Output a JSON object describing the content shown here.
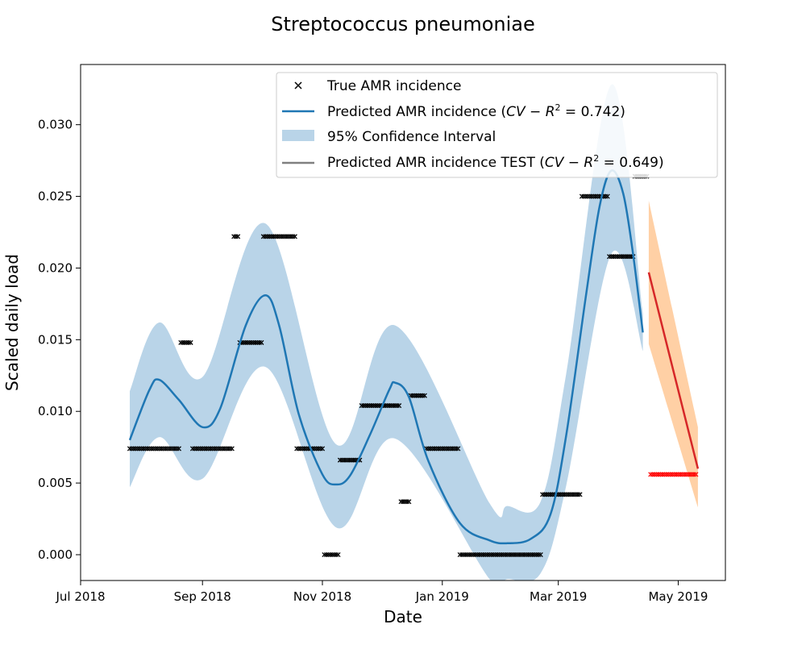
{
  "chart_data": {
    "type": "line",
    "title": "Streptococcus pneumoniae",
    "xlabel": "Date",
    "ylabel": "Scaled daily load",
    "x_axis_type": "date",
    "xlim": [
      "2018-07-01",
      "2019-05-25"
    ],
    "ylim": [
      -0.0018,
      0.0342
    ],
    "x_ticks": [
      {
        "date": "2018-07-01",
        "label": "Jul 2018"
      },
      {
        "date": "2018-09-01",
        "label": "Sep 2018"
      },
      {
        "date": "2018-11-01",
        "label": "Nov 2018"
      },
      {
        "date": "2019-01-01",
        "label": "Jan 2019"
      },
      {
        "date": "2019-03-01",
        "label": "Mar 2019"
      },
      {
        "date": "2019-05-01",
        "label": "May 2019"
      }
    ],
    "y_ticks": [
      0.0,
      0.005,
      0.01,
      0.015,
      0.02,
      0.025,
      0.03
    ],
    "y_tick_labels": [
      "0.000",
      "0.005",
      "0.010",
      "0.015",
      "0.020",
      "0.025",
      "0.030"
    ],
    "grid": false,
    "legend_position": "top-right",
    "legend": {
      "true_label": "True AMR incidence",
      "pred_label": "Predicted AMR incidence (",
      "pred_r2": "0.742",
      "ci_label": "95% Confidence Interval",
      "test_label": "Predicted AMR incidence TEST (",
      "test_r2": "0.649",
      "r2_prefix": "CV − R",
      "r2_sup": "2",
      "r2_eq": " = ",
      "close_paren": ")"
    },
    "colors": {
      "prediction": "#1f77b4",
      "ci": "#b9d4e8",
      "test_prediction": "#d62728",
      "test_ci": "#ffd0a5",
      "true_marker": "#000000",
      "test_marker": "#ff0000",
      "legend_test_line": "#808080"
    },
    "true_incidence": [
      {
        "start": "2018-07-26",
        "end": "2018-08-20",
        "value": 0.0074
      },
      {
        "start": "2018-08-21",
        "end": "2018-08-26",
        "value": 0.0148
      },
      {
        "start": "2018-08-27",
        "end": "2018-09-16",
        "value": 0.0074
      },
      {
        "start": "2018-09-17",
        "end": "2018-09-19",
        "value": 0.0222
      },
      {
        "start": "2018-09-20",
        "end": "2018-10-01",
        "value": 0.0148
      },
      {
        "start": "2018-10-02",
        "end": "2018-10-18",
        "value": 0.0222
      },
      {
        "start": "2018-10-19",
        "end": "2018-11-01",
        "value": 0.0074
      },
      {
        "start": "2018-11-02",
        "end": "2018-11-09",
        "value": 0.0
      },
      {
        "start": "2018-11-10",
        "end": "2018-11-20",
        "value": 0.0066
      },
      {
        "start": "2018-11-21",
        "end": "2018-12-10",
        "value": 0.0104
      },
      {
        "start": "2018-12-11",
        "end": "2018-12-15",
        "value": 0.0037
      },
      {
        "start": "2018-12-16",
        "end": "2018-12-23",
        "value": 0.0111
      },
      {
        "start": "2018-12-24",
        "end": "2019-01-09",
        "value": 0.0074
      },
      {
        "start": "2019-01-10",
        "end": "2019-02-20",
        "value": 0.0
      },
      {
        "start": "2019-02-21",
        "end": "2019-03-12",
        "value": 0.0042
      },
      {
        "start": "2019-03-13",
        "end": "2019-03-26",
        "value": 0.025
      },
      {
        "start": "2019-03-27",
        "end": "2019-04-08",
        "value": 0.0208
      },
      {
        "start": "2019-04-09",
        "end": "2019-04-15",
        "value": 0.0264
      }
    ],
    "test_true_incidence": [
      {
        "start": "2019-04-17",
        "end": "2019-05-10",
        "value": 0.0056
      }
    ],
    "prediction": [
      {
        "x": "2018-07-26",
        "y": 0.008
      },
      {
        "x": "2018-08-05",
        "y": 0.0115
      },
      {
        "x": "2018-08-10",
        "y": 0.0122
      },
      {
        "x": "2018-08-20",
        "y": 0.0108
      },
      {
        "x": "2018-09-01",
        "y": 0.0089
      },
      {
        "x": "2018-09-10",
        "y": 0.0102
      },
      {
        "x": "2018-09-23",
        "y": 0.016
      },
      {
        "x": "2018-10-03",
        "y": 0.0181
      },
      {
        "x": "2018-10-10",
        "y": 0.016
      },
      {
        "x": "2018-10-20",
        "y": 0.0098
      },
      {
        "x": "2018-11-01",
        "y": 0.0056
      },
      {
        "x": "2018-11-08",
        "y": 0.0049
      },
      {
        "x": "2018-11-15",
        "y": 0.0055
      },
      {
        "x": "2018-11-25",
        "y": 0.0083
      },
      {
        "x": "2018-12-05",
        "y": 0.0115
      },
      {
        "x": "2018-12-08",
        "y": 0.012
      },
      {
        "x": "2018-12-15",
        "y": 0.011
      },
      {
        "x": "2018-12-25",
        "y": 0.0065
      },
      {
        "x": "2019-01-10",
        "y": 0.0022
      },
      {
        "x": "2019-01-25",
        "y": 0.001
      },
      {
        "x": "2019-02-03",
        "y": 0.0008
      },
      {
        "x": "2019-02-15",
        "y": 0.0011
      },
      {
        "x": "2019-02-25",
        "y": 0.0028
      },
      {
        "x": "2019-03-05",
        "y": 0.0083
      },
      {
        "x": "2019-03-15",
        "y": 0.018
      },
      {
        "x": "2019-03-22",
        "y": 0.0243
      },
      {
        "x": "2019-03-28",
        "y": 0.0268
      },
      {
        "x": "2019-04-03",
        "y": 0.0252
      },
      {
        "x": "2019-04-08",
        "y": 0.021
      },
      {
        "x": "2019-04-13",
        "y": 0.0155
      }
    ],
    "ci_lower": [
      {
        "x": "2018-07-26",
        "y": 0.0047
      },
      {
        "x": "2018-08-10",
        "y": 0.0082
      },
      {
        "x": "2018-09-01",
        "y": 0.0053
      },
      {
        "x": "2018-10-03",
        "y": 0.0131
      },
      {
        "x": "2018-11-08",
        "y": 0.0019
      },
      {
        "x": "2018-12-08",
        "y": 0.0081
      },
      {
        "x": "2019-01-25",
        "y": -0.0017
      },
      {
        "x": "2019-02-03",
        "y": -0.0017
      },
      {
        "x": "2019-02-20",
        "y": -0.0013
      },
      {
        "x": "2019-03-05",
        "y": 0.0048
      },
      {
        "x": "2019-03-28",
        "y": 0.021
      },
      {
        "x": "2019-04-13",
        "y": 0.0142
      }
    ],
    "ci_upper": [
      {
        "x": "2018-07-26",
        "y": 0.0114
      },
      {
        "x": "2018-08-10",
        "y": 0.0162
      },
      {
        "x": "2018-09-01",
        "y": 0.0124
      },
      {
        "x": "2018-10-03",
        "y": 0.0231
      },
      {
        "x": "2018-11-08",
        "y": 0.0077
      },
      {
        "x": "2018-12-08",
        "y": 0.016
      },
      {
        "x": "2019-01-25",
        "y": 0.0036
      },
      {
        "x": "2019-02-03",
        "y": 0.0034
      },
      {
        "x": "2019-02-20",
        "y": 0.0037
      },
      {
        "x": "2019-03-05",
        "y": 0.0126
      },
      {
        "x": "2019-03-28",
        "y": 0.0328
      },
      {
        "x": "2019-04-13",
        "y": 0.0168
      }
    ],
    "test_prediction": [
      {
        "x": "2019-04-16",
        "y": 0.0197
      },
      {
        "x": "2019-05-11",
        "y": 0.006
      }
    ],
    "test_ci_lower": [
      {
        "x": "2019-04-16",
        "y": 0.0147
      },
      {
        "x": "2019-05-11",
        "y": 0.0033
      }
    ],
    "test_ci_upper": [
      {
        "x": "2019-04-16",
        "y": 0.0247
      },
      {
        "x": "2019-05-11",
        "y": 0.0089
      }
    ]
  }
}
